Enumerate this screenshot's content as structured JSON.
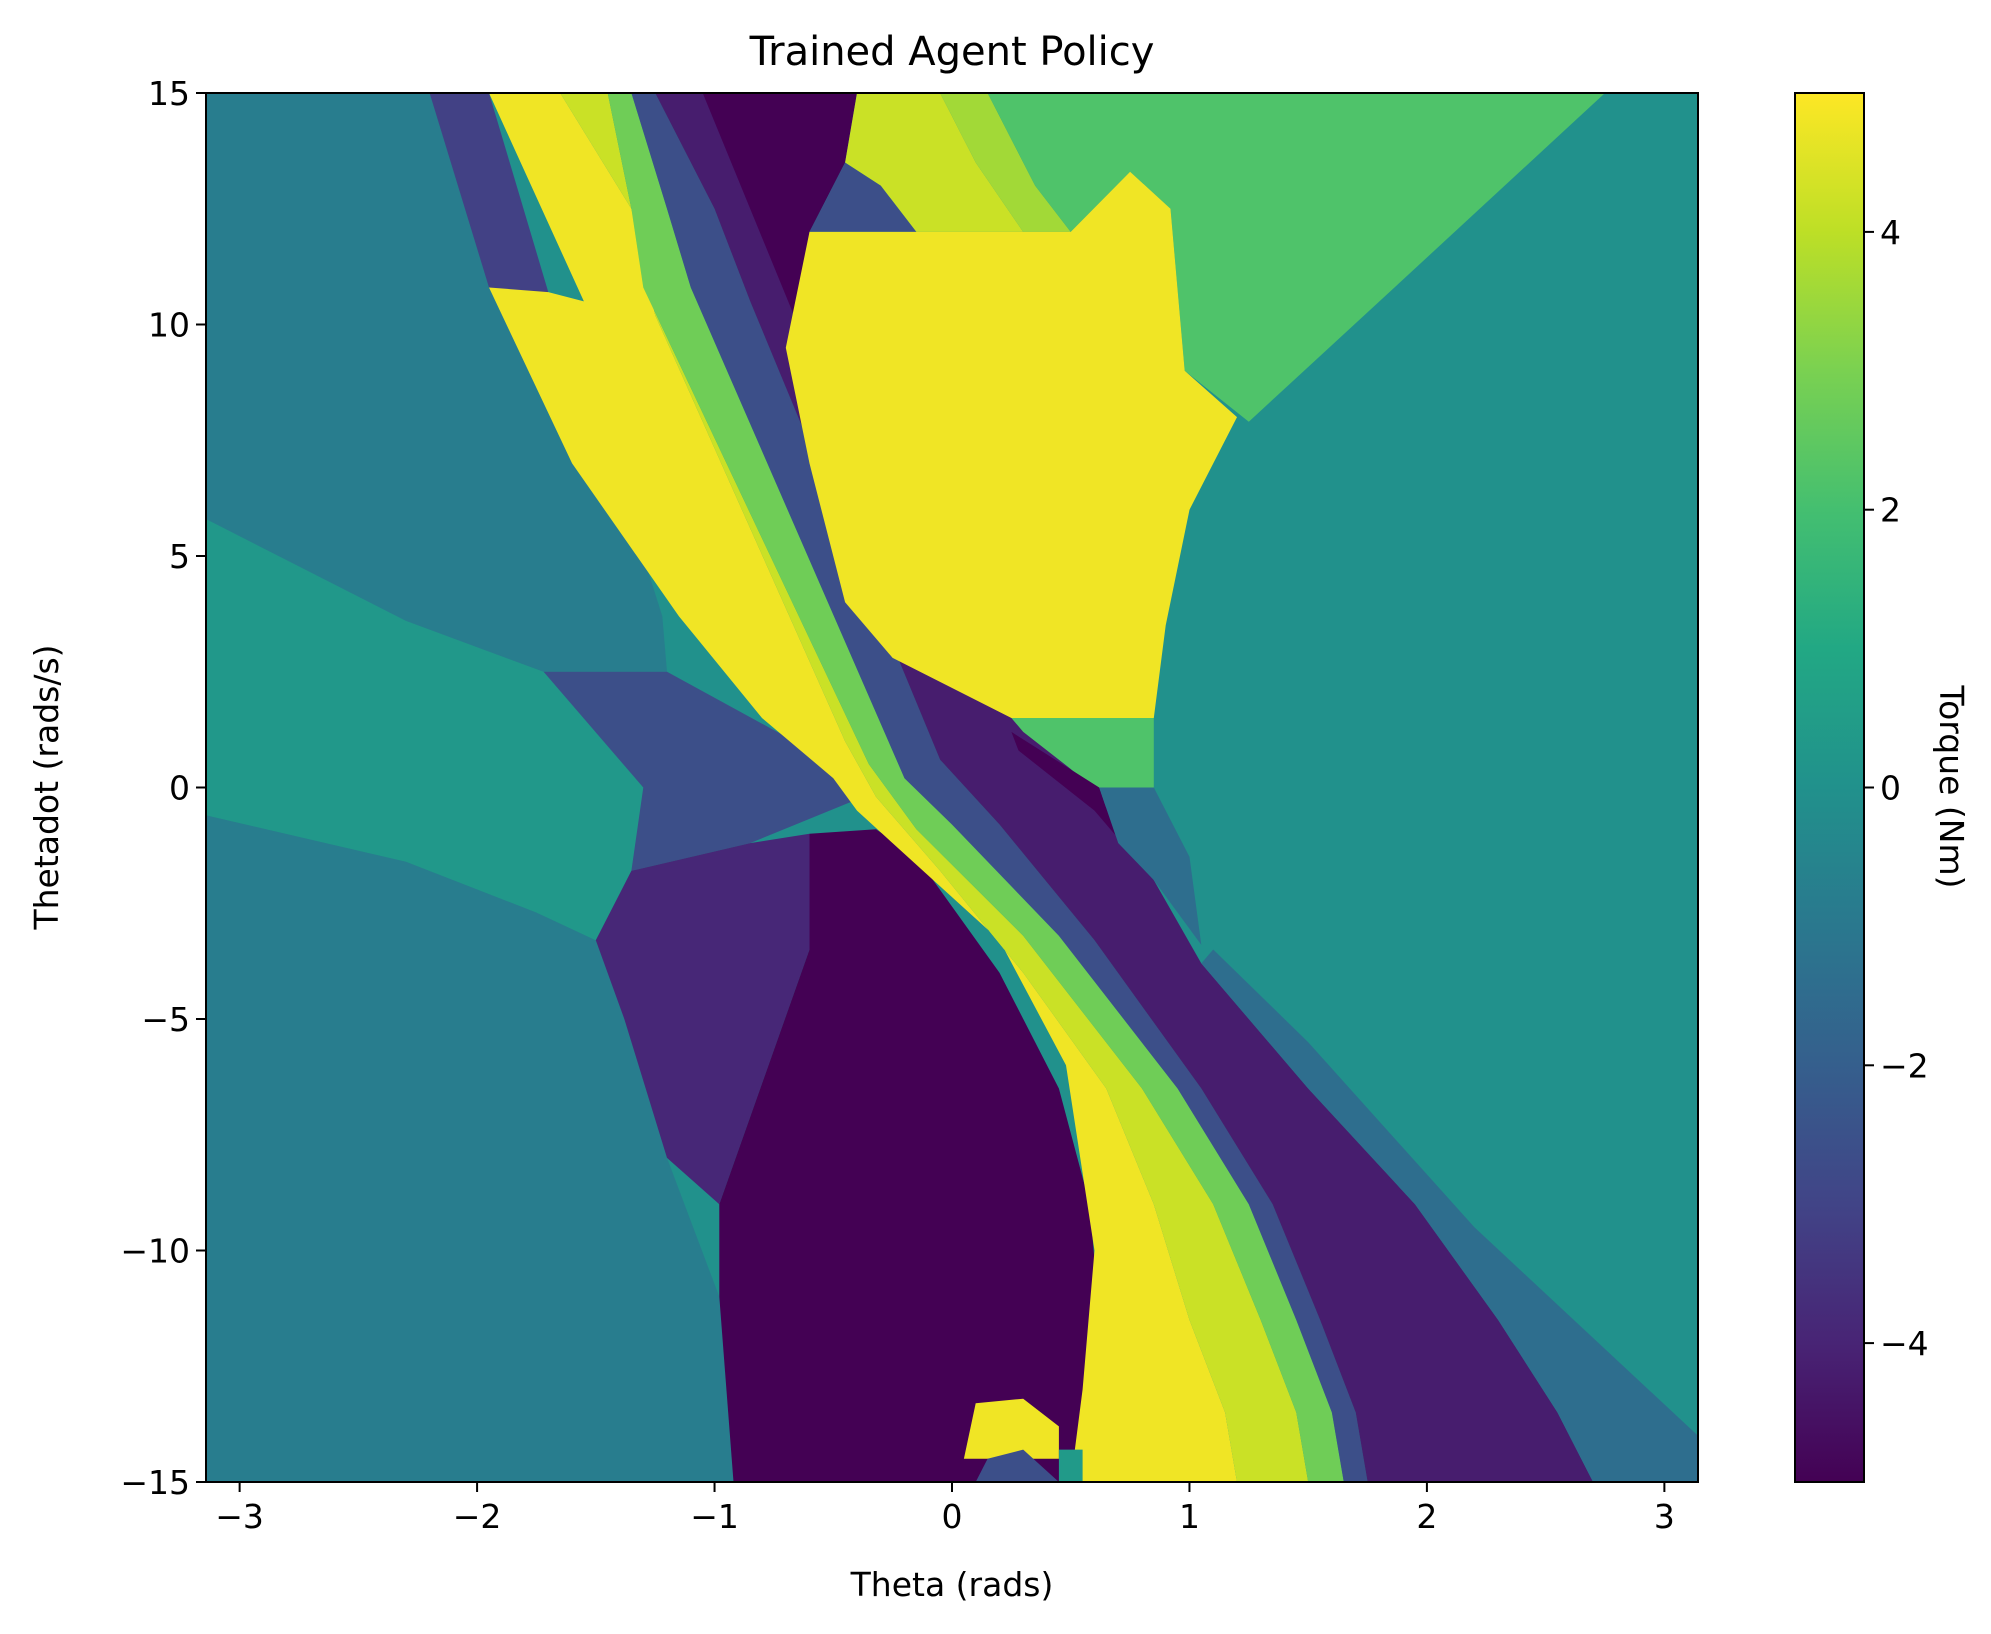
{
  "chart_data": {
    "type": "heatmap",
    "title": "Trained Agent Policy",
    "xlabel": "Theta (rads)",
    "ylabel": "Thetadot (rads/s)",
    "xlim": [
      -3.1416,
      3.1416
    ],
    "ylim": [
      -15,
      15
    ],
    "x_ticks": [
      -3,
      -2,
      -1,
      0,
      1,
      2,
      3
    ],
    "y_ticks": [
      -15,
      -10,
      -5,
      0,
      5,
      10,
      15
    ],
    "x_tick_labels": [
      "−3",
      "−2",
      "−1",
      "0",
      "1",
      "2",
      "3"
    ],
    "y_tick_labels": [
      "−15",
      "−10",
      "−5",
      "0",
      "5",
      "10",
      "15"
    ],
    "colorbar": {
      "label": "Torque (Nm)",
      "colormap": "viridis",
      "range": [
        -5,
        5
      ],
      "ticks": [
        -4,
        -2,
        0,
        2,
        4
      ],
      "tick_labels": [
        "−4",
        "−2",
        "0",
        "2",
        "4"
      ]
    },
    "grid": false,
    "regions": [
      {
        "torque": -0.8,
        "polygon": [
          [
            -3.1416,
            -15
          ],
          [
            -0.92,
            -15
          ],
          [
            -0.98,
            -11
          ],
          [
            -1.2,
            -8
          ],
          [
            -1.38,
            -5
          ],
          [
            -1.5,
            -3.3
          ],
          [
            -1.75,
            -2.7
          ],
          [
            -2.3,
            -1.6
          ],
          [
            -3.1416,
            -0.6
          ]
        ]
      },
      {
        "torque": 0.3,
        "polygon": [
          [
            -3.1416,
            -0.6
          ],
          [
            -2.3,
            -1.6
          ],
          [
            -1.75,
            -2.7
          ],
          [
            -1.5,
            -3.3
          ],
          [
            -1.35,
            -1.8
          ],
          [
            -1.3,
            0
          ],
          [
            -1.72,
            2.5
          ],
          [
            -2.3,
            3.6
          ],
          [
            -3.1416,
            5.8
          ]
        ]
      },
      {
        "torque": -0.8,
        "polygon": [
          [
            -3.1416,
            5.8
          ],
          [
            -2.3,
            3.6
          ],
          [
            -1.72,
            2.5
          ],
          [
            -1.2,
            2.5
          ],
          [
            -1.22,
            3.7
          ],
          [
            -1.3,
            5.0
          ],
          [
            -1.7,
            8.5
          ],
          [
            -1.95,
            10.8
          ],
          [
            -2.2,
            15
          ],
          [
            -3.1416,
            15
          ]
        ]
      },
      {
        "torque": -2.6,
        "polygon": [
          [
            -1.72,
            2.5
          ],
          [
            -1.3,
            0
          ],
          [
            -1.35,
            -1.8
          ],
          [
            -0.85,
            -1.2
          ],
          [
            -0.42,
            -0.3
          ],
          [
            -0.45,
            0.4
          ],
          [
            -1.2,
            2.5
          ]
        ]
      },
      {
        "torque": -3.9,
        "polygon": [
          [
            -1.5,
            -3.3
          ],
          [
            -1.35,
            -1.8
          ],
          [
            -0.85,
            -1.2
          ],
          [
            -0.6,
            -1.0
          ],
          [
            -0.6,
            -3.5
          ],
          [
            -0.98,
            -9.0
          ],
          [
            -1.2,
            -8
          ],
          [
            -1.38,
            -5
          ]
        ]
      },
      {
        "torque": -5.0,
        "polygon": [
          [
            -0.6,
            -1.0
          ],
          [
            -0.32,
            -0.9
          ],
          [
            -0.15,
            -1.5
          ],
          [
            0.2,
            -4.0
          ],
          [
            0.45,
            -6.5
          ],
          [
            0.58,
            -9.0
          ],
          [
            0.63,
            -12.0
          ],
          [
            0.55,
            -14.2
          ],
          [
            0.45,
            -15
          ],
          [
            -0.92,
            -15
          ],
          [
            -0.98,
            -11
          ],
          [
            -0.98,
            -9.0
          ],
          [
            -0.6,
            -3.5
          ]
        ]
      },
      {
        "torque": -3.1,
        "polygon": [
          [
            -2.2,
            15
          ],
          [
            -1.95,
            15
          ],
          [
            -1.7,
            10.7
          ],
          [
            -1.75,
            10.5
          ],
          [
            -1.95,
            10.8
          ]
        ]
      },
      {
        "torque": 4.8,
        "polygon": [
          [
            -1.95,
            15
          ],
          [
            -1.65,
            15
          ],
          [
            -1.35,
            12.5
          ],
          [
            -1.25,
            10.2
          ],
          [
            -0.45,
            1.0
          ],
          [
            -0.32,
            -0.2
          ],
          [
            -0.05,
            -1.8
          ],
          [
            0.3,
            -4.0
          ],
          [
            0.65,
            -6.5
          ],
          [
            0.85,
            -9.0
          ],
          [
            1.0,
            -11.5
          ],
          [
            1.15,
            -13.5
          ],
          [
            1.2,
            -15
          ],
          [
            0.5,
            -15
          ],
          [
            0.55,
            -13
          ],
          [
            0.6,
            -10
          ],
          [
            0.48,
            -6
          ],
          [
            0.2,
            -3.3
          ],
          [
            -0.25,
            -1.2
          ],
          [
            -0.4,
            -0.5
          ],
          [
            -0.5,
            0.2
          ],
          [
            -0.8,
            1.5
          ],
          [
            -1.15,
            3.7
          ],
          [
            -1.6,
            7.0
          ],
          [
            -1.95,
            10.8
          ],
          [
            -1.7,
            10.7
          ],
          [
            -1.55,
            10.5
          ]
        ]
      },
      {
        "torque": 4.2,
        "polygon": [
          [
            -1.65,
            15
          ],
          [
            -1.45,
            15
          ],
          [
            -1.35,
            12.5
          ],
          [
            -1.3,
            10.8
          ],
          [
            -0.35,
            0.5
          ],
          [
            -0.15,
            -0.9
          ],
          [
            0.3,
            -3.2
          ],
          [
            0.8,
            -6.5
          ],
          [
            1.1,
            -9.0
          ],
          [
            1.3,
            -11.5
          ],
          [
            1.45,
            -13.5
          ],
          [
            1.5,
            -15
          ],
          [
            1.2,
            -15
          ],
          [
            1.15,
            -13.5
          ],
          [
            1.0,
            -11.5
          ],
          [
            0.85,
            -9.0
          ],
          [
            0.65,
            -6.5
          ],
          [
            0.3,
            -4.0
          ],
          [
            -0.05,
            -1.8
          ],
          [
            -0.32,
            -0.2
          ],
          [
            -0.45,
            1.0
          ],
          [
            -1.25,
            10.2
          ],
          [
            -1.35,
            12.5
          ]
        ]
      },
      {
        "torque": 2.8,
        "polygon": [
          [
            -1.45,
            15
          ],
          [
            -1.35,
            15
          ],
          [
            -1.2,
            12.5
          ],
          [
            -1.1,
            10.8
          ],
          [
            -0.2,
            0.2
          ],
          [
            0.0,
            -0.8
          ],
          [
            0.45,
            -3.2
          ],
          [
            0.95,
            -6.5
          ],
          [
            1.25,
            -9.0
          ],
          [
            1.45,
            -11.5
          ],
          [
            1.6,
            -13.5
          ],
          [
            1.65,
            -15
          ],
          [
            1.5,
            -15
          ],
          [
            1.45,
            -13.5
          ],
          [
            1.3,
            -11.5
          ],
          [
            1.1,
            -9.0
          ],
          [
            0.8,
            -6.5
          ],
          [
            0.3,
            -3.2
          ],
          [
            -0.15,
            -0.9
          ],
          [
            -0.35,
            0.5
          ],
          [
            -1.3,
            10.8
          ],
          [
            -1.35,
            12.5
          ]
        ]
      },
      {
        "torque": -2.6,
        "polygon": [
          [
            -1.35,
            15
          ],
          [
            -1.25,
            15
          ],
          [
            -1.0,
            12.5
          ],
          [
            -0.85,
            10.5
          ],
          [
            -0.05,
            0.6
          ],
          [
            0.2,
            -0.8
          ],
          [
            0.6,
            -3.3
          ],
          [
            1.05,
            -6.5
          ],
          [
            1.35,
            -9.0
          ],
          [
            1.55,
            -11.5
          ],
          [
            1.7,
            -13.5
          ],
          [
            1.75,
            -15
          ],
          [
            1.65,
            -15
          ],
          [
            1.6,
            -13.5
          ],
          [
            1.45,
            -11.5
          ],
          [
            1.25,
            -9.0
          ],
          [
            0.95,
            -6.5
          ],
          [
            0.45,
            -3.2
          ],
          [
            0.0,
            -0.8
          ],
          [
            -0.2,
            0.2
          ],
          [
            -1.1,
            10.8
          ],
          [
            -1.2,
            12.5
          ]
        ]
      },
      {
        "torque": -4.2,
        "polygon": [
          [
            -1.25,
            15
          ],
          [
            -1.05,
            15
          ],
          [
            -0.75,
            12.5
          ],
          [
            -0.65,
            10.0
          ],
          [
            0.28,
            1.5
          ],
          [
            0.62,
            -0.2
          ],
          [
            0.85,
            -2.0
          ],
          [
            1.05,
            -3.8
          ],
          [
            1.5,
            -6.5
          ],
          [
            1.95,
            -9.0
          ],
          [
            2.3,
            -11.5
          ],
          [
            2.55,
            -13.5
          ],
          [
            2.7,
            -15
          ],
          [
            1.75,
            -15
          ],
          [
            1.7,
            -13.5
          ],
          [
            1.55,
            -11.5
          ],
          [
            1.35,
            -9.0
          ],
          [
            1.05,
            -6.5
          ],
          [
            0.6,
            -3.3
          ],
          [
            0.2,
            -0.8
          ],
          [
            -0.05,
            0.6
          ],
          [
            -0.85,
            10.5
          ],
          [
            -1.0,
            12.5
          ]
        ]
      },
      {
        "torque": -1.4,
        "polygon": [
          [
            1.05,
            -3.8
          ],
          [
            1.5,
            -6.5
          ],
          [
            1.95,
            -9.0
          ],
          [
            2.3,
            -11.5
          ],
          [
            2.55,
            -13.5
          ],
          [
            2.7,
            -15
          ],
          [
            3.1416,
            -15
          ],
          [
            3.1416,
            -14.0
          ],
          [
            2.2,
            -9.5
          ],
          [
            1.5,
            -5.5
          ],
          [
            1.1,
            -3.5
          ]
        ]
      },
      {
        "torque": -5.0,
        "polygon": [
          [
            -1.05,
            15
          ],
          [
            -0.4,
            15
          ],
          [
            -0.45,
            13.5
          ],
          [
            -0.6,
            12.0
          ],
          [
            -0.65,
            10.0
          ]
        ]
      },
      {
        "torque": -2.6,
        "polygon": [
          [
            -0.45,
            13.5
          ],
          [
            -0.3,
            13.0
          ],
          [
            -0.15,
            12.0
          ],
          [
            -0.6,
            12.0
          ]
        ]
      },
      {
        "torque": 4.2,
        "polygon": [
          [
            -0.4,
            15
          ],
          [
            -0.05,
            15
          ],
          [
            0.1,
            13.5
          ],
          [
            0.3,
            12.0
          ],
          [
            -0.15,
            12.0
          ],
          [
            -0.3,
            13.0
          ],
          [
            -0.45,
            13.5
          ]
        ]
      },
      {
        "torque": 3.6,
        "polygon": [
          [
            -0.05,
            15
          ],
          [
            0.15,
            15
          ],
          [
            0.35,
            13.0
          ],
          [
            0.5,
            12.0
          ],
          [
            0.3,
            12.0
          ],
          [
            0.1,
            13.5
          ]
        ]
      },
      {
        "torque": 2.2,
        "polygon": [
          [
            0.15,
            15
          ],
          [
            2.75,
            15
          ],
          [
            1.8,
            10.5
          ],
          [
            1.25,
            7.9
          ],
          [
            0.98,
            9.0
          ],
          [
            0.92,
            12.5
          ],
          [
            0.75,
            13.3
          ],
          [
            0.5,
            12.0
          ],
          [
            0.35,
            13.0
          ]
        ]
      },
      {
        "torque": 4.8,
        "polygon": [
          [
            -0.6,
            12.0
          ],
          [
            -0.15,
            12.0
          ],
          [
            0.3,
            12.0
          ],
          [
            0.5,
            12.0
          ],
          [
            0.75,
            13.3
          ],
          [
            0.92,
            12.5
          ],
          [
            0.98,
            9.0
          ],
          [
            1.2,
            8.0
          ],
          [
            1.0,
            6.0
          ],
          [
            0.9,
            3.5
          ],
          [
            0.85,
            1.5
          ],
          [
            0.25,
            1.5
          ],
          [
            -0.25,
            2.8
          ],
          [
            -0.45,
            4.0
          ],
          [
            -0.6,
            7.0
          ],
          [
            -0.7,
            9.5
          ]
        ]
      },
      {
        "torque": 2.2,
        "polygon": [
          [
            0.25,
            1.5
          ],
          [
            0.85,
            1.5
          ],
          [
            0.85,
            0.0
          ],
          [
            0.6,
            0.0
          ],
          [
            0.3,
            1.2
          ]
        ]
      },
      {
        "torque": -5.0,
        "polygon": [
          [
            0.25,
            1.2
          ],
          [
            0.62,
            0.0
          ],
          [
            0.7,
            -1.2
          ],
          [
            0.85,
            -2.0
          ],
          [
            0.6,
            -0.5
          ],
          [
            0.28,
            0.8
          ]
        ]
      },
      {
        "torque": -1.4,
        "polygon": [
          [
            0.62,
            0.0
          ],
          [
            0.85,
            0.0
          ],
          [
            1.0,
            -1.5
          ],
          [
            1.05,
            -3.4
          ],
          [
            0.85,
            -2.0
          ],
          [
            0.7,
            -1.2
          ]
        ]
      },
      {
        "torque": 4.8,
        "polygon": [
          [
            0.05,
            -14.5
          ],
          [
            0.1,
            -13.3
          ],
          [
            0.3,
            -13.2
          ],
          [
            0.45,
            -13.8
          ],
          [
            0.45,
            -14.5
          ]
        ]
      },
      {
        "torque": -2.6,
        "polygon": [
          [
            0.1,
            -15
          ],
          [
            0.15,
            -14.5
          ],
          [
            0.3,
            -14.3
          ],
          [
            0.45,
            -15
          ]
        ]
      },
      {
        "torque": 0.4,
        "polygon": [
          [
            0.45,
            -15
          ],
          [
            0.45,
            -14.3
          ],
          [
            0.55,
            -14.3
          ],
          [
            0.55,
            -15
          ]
        ]
      }
    ]
  }
}
